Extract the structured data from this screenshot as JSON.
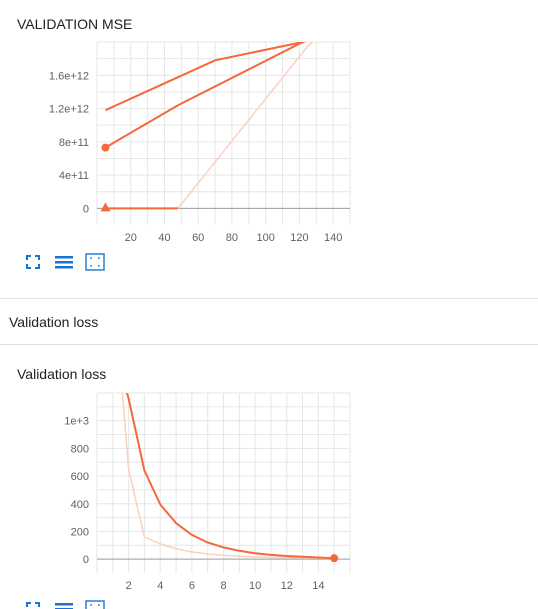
{
  "accent_color": "#f4683a",
  "faint_color": "#fbd0c0",
  "icon_color": "#1976d2",
  "cards": [
    {
      "title": "VALIDATION MSE",
      "toolbar": [
        "fit-to-data-icon",
        "toggle-log-scale-icon",
        "expand-chart-icon"
      ]
    },
    {
      "title": "Validation loss",
      "toolbar": [
        "fit-to-data-icon",
        "toggle-log-scale-icon",
        "expand-chart-icon"
      ]
    }
  ],
  "section": {
    "title": "Validation loss"
  },
  "chart_data": [
    {
      "type": "line",
      "title": "VALIDATION MSE",
      "xlim": [
        0,
        150
      ],
      "ylim": [
        -200000000000,
        2000000000000
      ],
      "xticks": [
        20,
        40,
        60,
        80,
        100,
        120,
        140
      ],
      "yticks": [
        0,
        400000000000,
        800000000000,
        1200000000000,
        1600000000000
      ],
      "ytick_labels": [
        "0",
        "4e+11",
        "8e+11",
        "1.2e+12",
        "1.6e+12"
      ],
      "grid": true,
      "series": [
        {
          "style": "smoothed",
          "points": [
            [
              5,
              1180000000000
            ],
            [
              70,
              1780000000000
            ],
            [
              122,
              2000000000000
            ],
            [
              150,
              2180000000000
            ]
          ]
        },
        {
          "style": "smoothed",
          "marker": "circle",
          "points": [
            [
              5,
              730000000000
            ],
            [
              48,
              1240000000000
            ],
            [
              120,
              1980000000000
            ],
            [
              150,
              2260000000000
            ]
          ]
        },
        {
          "style": "raw",
          "points": [
            [
              5,
              0
            ],
            [
              48,
              0
            ],
            [
              125,
              1950000000000
            ],
            [
              150,
              2380000000000
            ]
          ]
        },
        {
          "style": "smoothed",
          "marker": "triangle",
          "points": [
            [
              5,
              0
            ],
            [
              48,
              0
            ]
          ]
        }
      ]
    },
    {
      "type": "line",
      "title": "Validation loss",
      "xlim": [
        0,
        16
      ],
      "ylim": [
        -100,
        1200
      ],
      "xticks": [
        2,
        4,
        6,
        8,
        10,
        12,
        14
      ],
      "yticks": [
        0,
        200,
        400,
        600,
        800,
        1000
      ],
      "ytick_labels": [
        "0",
        "200",
        "400",
        "600",
        "800",
        "1e+3"
      ],
      "grid": true,
      "series": [
        {
          "style": "raw",
          "points": [
            [
              1.5,
              1350
            ],
            [
              2,
              650
            ],
            [
              3,
              160
            ],
            [
              4,
              110
            ],
            [
              5,
              75
            ],
            [
              6,
              52
            ],
            [
              7,
              38
            ],
            [
              8,
              28
            ],
            [
              9,
              21
            ],
            [
              10,
              16
            ],
            [
              11,
              13
            ],
            [
              12,
              11
            ],
            [
              13,
              9
            ],
            [
              14,
              8
            ],
            [
              15,
              7
            ]
          ]
        },
        {
          "style": "smoothed",
          "marker": "circle",
          "points": [
            [
              1.5,
              1350
            ],
            [
              2,
              1160
            ],
            [
              3,
              640
            ],
            [
              4,
              395
            ],
            [
              5,
              260
            ],
            [
              6,
              175
            ],
            [
              7,
              120
            ],
            [
              8,
              85
            ],
            [
              9,
              60
            ],
            [
              10,
              42
            ],
            [
              11,
              31
            ],
            [
              12,
              23
            ],
            [
              13,
              17
            ],
            [
              14,
              12
            ],
            [
              15,
              7
            ]
          ]
        }
      ]
    }
  ]
}
